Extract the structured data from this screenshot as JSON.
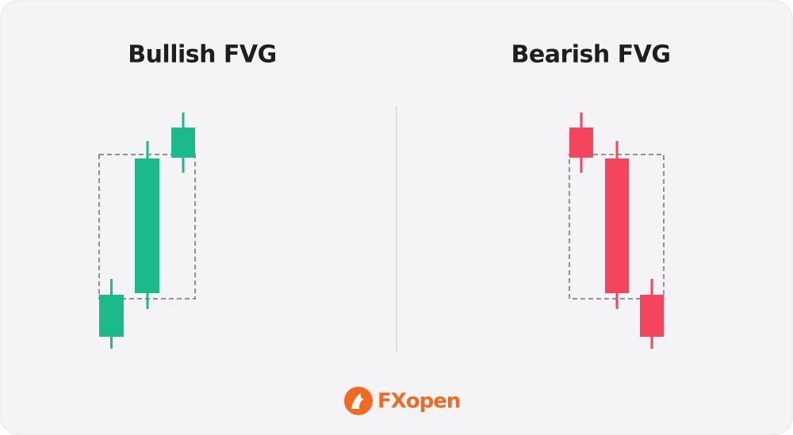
{
  "panels": [
    {
      "title": "Bullish FVG"
    },
    {
      "title": "Bearish FVG"
    }
  ],
  "footer": {
    "logo": "FXopen"
  }
}
